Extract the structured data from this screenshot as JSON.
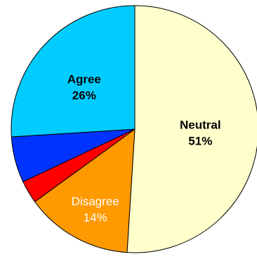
{
  "chart_data": {
    "type": "pie",
    "slices": [
      {
        "name": "Neutral",
        "value": 51,
        "value_label": "51%",
        "color": "#FFFFCC",
        "label_color": "#000000",
        "label_bold": true,
        "show_label": true
      },
      {
        "name": "Disagree",
        "value": 14,
        "value_label": "14%",
        "color": "#FF9900",
        "label_color": "#FFFFFF",
        "label_bold": false,
        "show_label": true
      },
      {
        "name": "",
        "value": 3,
        "value_label": "",
        "color": "#FF0000",
        "label_color": "#000000",
        "label_bold": false,
        "show_label": false
      },
      {
        "name": "",
        "value": 6,
        "value_label": "",
        "color": "#0033FF",
        "label_color": "#000000",
        "label_bold": false,
        "show_label": false
      },
      {
        "name": "Agree",
        "value": 26,
        "value_label": "26%",
        "color": "#00CCFF",
        "label_color": "#000000",
        "label_bold": true,
        "show_label": true
      }
    ],
    "start": "12 o'clock",
    "direction": "clockwise",
    "outline_color": "#000000"
  }
}
